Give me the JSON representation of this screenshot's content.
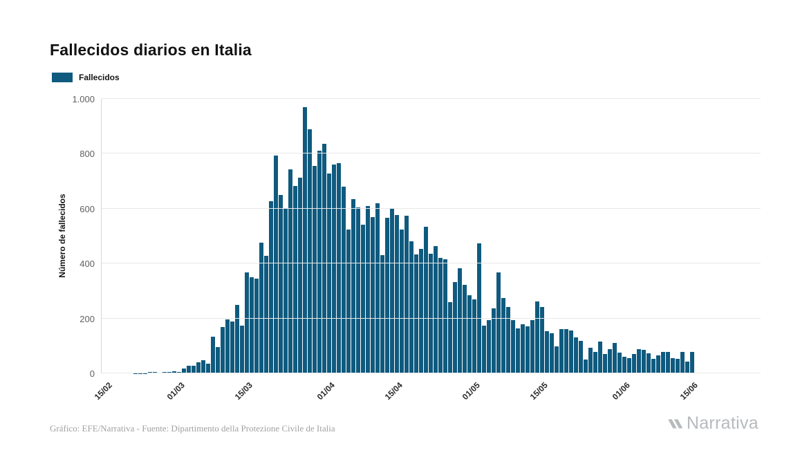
{
  "title": "Fallecidos diarios en Italia",
  "legend": {
    "label": "Fallecidos",
    "color": "#0f5a7e"
  },
  "y_axis": {
    "label": "Número de fallecidos"
  },
  "footer": {
    "source": "Gráfico: EFE/Narrativa - Fuente: Dipartimento della Protezione Civile de Italia",
    "brand": "Narrativa"
  },
  "chart_data": {
    "type": "bar",
    "title": "Fallecidos diarios en Italia",
    "xlabel": "",
    "ylabel": "Número de fallecidos",
    "ylim": [
      0,
      1000
    ],
    "yticks": [
      0,
      200,
      400,
      600,
      800,
      1000
    ],
    "ytick_labels": [
      "0",
      "200",
      "400",
      "600",
      "800",
      "1.000"
    ],
    "x_tick_labels": [
      "15/02",
      "01/03",
      "15/03",
      "01/04",
      "15/04",
      "01/05",
      "15/05",
      "01/06",
      "15/06"
    ],
    "legend": [
      "Fallecidos"
    ],
    "legend_position": "top-left",
    "grid": "horizontal",
    "bar_color": "#0f5a7e",
    "x": [
      "15/02",
      "16/02",
      "17/02",
      "18/02",
      "19/02",
      "20/02",
      "21/02",
      "22/02",
      "23/02",
      "24/02",
      "25/02",
      "26/02",
      "27/02",
      "28/02",
      "29/02",
      "01/03",
      "02/03",
      "03/03",
      "04/03",
      "05/03",
      "06/03",
      "07/03",
      "08/03",
      "09/03",
      "10/03",
      "11/03",
      "12/03",
      "13/03",
      "14/03",
      "15/03",
      "16/03",
      "17/03",
      "18/03",
      "19/03",
      "20/03",
      "21/03",
      "22/03",
      "23/03",
      "24/03",
      "25/03",
      "26/03",
      "27/03",
      "28/03",
      "29/03",
      "30/03",
      "31/03",
      "01/04",
      "02/04",
      "03/04",
      "04/04",
      "05/04",
      "06/04",
      "07/04",
      "08/04",
      "09/04",
      "10/04",
      "11/04",
      "12/04",
      "13/04",
      "14/04",
      "15/04",
      "16/04",
      "17/04",
      "18/04",
      "19/04",
      "20/04",
      "21/04",
      "22/04",
      "23/04",
      "24/04",
      "25/04",
      "26/04",
      "27/04",
      "28/04",
      "29/04",
      "30/04",
      "01/05",
      "02/05",
      "03/05",
      "04/05",
      "05/05",
      "06/05",
      "07/05",
      "08/05",
      "09/05",
      "10/05",
      "11/05",
      "12/05",
      "13/05",
      "14/05",
      "15/05",
      "16/05",
      "17/05",
      "18/05",
      "19/05",
      "20/05",
      "21/05",
      "22/05",
      "23/05",
      "24/05",
      "25/05",
      "26/05",
      "27/05",
      "28/05",
      "29/05",
      "30/05",
      "31/05",
      "01/06",
      "02/06",
      "03/06",
      "04/06",
      "05/06",
      "06/06",
      "07/06",
      "08/06",
      "09/06",
      "10/06",
      "11/06",
      "12/06",
      "13/06",
      "14/06",
      "15/06"
    ],
    "values": [
      0,
      0,
      0,
      0,
      0,
      0,
      1,
      1,
      1,
      4,
      4,
      2,
      5,
      4,
      8,
      5,
      18,
      27,
      28,
      41,
      49,
      36,
      133,
      97,
      168,
      196,
      189,
      250,
      175,
      368,
      349,
      345,
      475,
      427,
      627,
      793,
      651,
      601,
      743,
      683,
      712,
      969,
      889,
      756,
      812,
      837,
      727,
      760,
      766,
      681,
      525,
      636,
      604,
      542,
      610,
      570,
      619,
      431,
      566,
      602,
      578,
      525,
      575,
      482,
      433,
      454,
      534,
      437,
      464,
      420,
      415,
      260,
      333,
      382,
      323,
      285,
      269,
      474,
      174,
      195,
      236,
      369,
      274,
      243,
      194,
      165,
      179,
      172,
      195,
      262,
      242,
      153,
      145,
      99,
      162,
      161,
      156,
      130,
      119,
      50,
      92,
      78,
      117,
      70,
      87,
      111,
      75,
      60,
      55,
      71,
      88,
      85,
      72,
      53,
      65,
      79,
      79,
      56,
      53,
      78,
      44,
      78
    ]
  }
}
